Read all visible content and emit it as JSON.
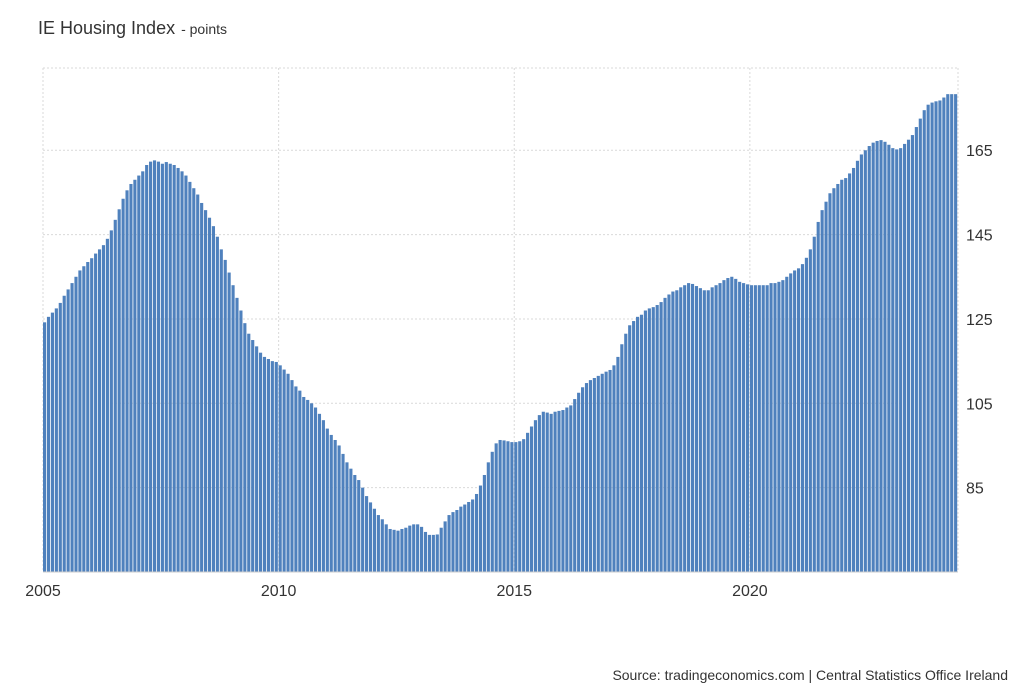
{
  "chart_data": {
    "type": "bar",
    "title": "IE Housing Index",
    "subtitle": "- points",
    "source": "Source: tradingeconomics.com | Central Statistics Office Ireland",
    "color": "#4f81bd",
    "ylim": [
      65,
      184.5
    ],
    "yticks": [
      85,
      105,
      125,
      145,
      165
    ],
    "grid": true,
    "categories": [
      "2005",
      null,
      null,
      null,
      null,
      null,
      null,
      null,
      null,
      null,
      null,
      null,
      null,
      null,
      null,
      null,
      null,
      null,
      null,
      null,
      null,
      null,
      null,
      null,
      null,
      null,
      null,
      null,
      null,
      null,
      null,
      null,
      null,
      null,
      null,
      null,
      null,
      null,
      null,
      null,
      null,
      null,
      null,
      null,
      null,
      null,
      null,
      null,
      null,
      null,
      null,
      null,
      null,
      null,
      null,
      null,
      null,
      null,
      null,
      null,
      "2010",
      null,
      null,
      null,
      null,
      null,
      null,
      null,
      null,
      null,
      null,
      null,
      null,
      null,
      null,
      null,
      null,
      null,
      null,
      null,
      null,
      null,
      null,
      null,
      null,
      null,
      null,
      null,
      null,
      null,
      null,
      null,
      null,
      null,
      null,
      null,
      null,
      null,
      null,
      null,
      null,
      null,
      null,
      null,
      null,
      null,
      null,
      null,
      null,
      null,
      null,
      null,
      null,
      null,
      null,
      null,
      null,
      null,
      null,
      null,
      "2015",
      null,
      null,
      null,
      null,
      null,
      null,
      null,
      null,
      null,
      null,
      null,
      null,
      null,
      null,
      null,
      null,
      null,
      null,
      null,
      null,
      null,
      null,
      null,
      null,
      null,
      null,
      null,
      null,
      null,
      null,
      null,
      null,
      null,
      null,
      null,
      null,
      null,
      null,
      null,
      null,
      null,
      null,
      null,
      null,
      null,
      null,
      null,
      null,
      null,
      null,
      null,
      null,
      null,
      null,
      null,
      null,
      null,
      null,
      null,
      "2020",
      null,
      null,
      null,
      null,
      null,
      null,
      null,
      null,
      null,
      null,
      null,
      null,
      null,
      null,
      null,
      null,
      null,
      null,
      null,
      null,
      null,
      null,
      null,
      null,
      null,
      null,
      null,
      null,
      null,
      null,
      null,
      null,
      null,
      null,
      null,
      null,
      null,
      null,
      null,
      null,
      null,
      null,
      null,
      null,
      null,
      null,
      null,
      null,
      null,
      null,
      null,
      null
    ],
    "values": [
      124.2,
      125.5,
      126.5,
      127.5,
      128.8,
      130.5,
      132,
      133.5,
      135,
      136.5,
      137.5,
      138.5,
      139.4,
      140.5,
      141.5,
      142.5,
      144,
      146,
      148.5,
      151,
      153.5,
      155.5,
      157,
      158,
      159,
      160,
      161.5,
      162.3,
      162.6,
      162.3,
      161.8,
      162.2,
      161.8,
      161.5,
      160.8,
      160,
      159,
      157.5,
      156,
      154.5,
      152.5,
      150.8,
      149,
      147,
      144.5,
      141.5,
      139,
      136,
      133,
      130,
      127,
      124,
      121.5,
      120,
      118.5,
      117,
      116,
      115.5,
      115,
      114.8,
      114,
      113,
      112,
      110.5,
      109,
      108,
      106.5,
      105.8,
      105,
      104,
      102.5,
      101,
      99,
      97.5,
      96.3,
      95,
      93,
      91,
      89.5,
      88,
      86.8,
      85,
      83,
      81.5,
      80,
      78.5,
      77.5,
      76.3,
      75.2,
      75,
      74.8,
      75.2,
      75.5,
      76,
      76.3,
      76.3,
      75.7,
      74.5,
      73.8,
      73.8,
      73.9,
      75.5,
      77,
      78.5,
      79.2,
      79.7,
      80.5,
      81,
      81.6,
      82.2,
      83.5,
      85.5,
      88,
      91,
      93.5,
      95.5,
      96.3,
      96.2,
      96,
      95.8,
      95.8,
      96,
      96.5,
      98,
      99.5,
      101,
      102.2,
      103,
      102.8,
      102.5,
      103,
      103.2,
      103.4,
      104,
      104.5,
      106,
      107.5,
      108.8,
      109.8,
      110.5,
      111,
      111.5,
      112,
      112.5,
      112.9,
      114,
      116,
      119,
      121.5,
      123.5,
      124.5,
      125.5,
      126,
      127,
      127.5,
      127.8,
      128.3,
      129,
      130,
      130.8,
      131.5,
      131.8,
      132.5,
      133,
      133.5,
      133.3,
      132.8,
      132.3,
      131.8,
      131.8,
      132.5,
      133,
      133.5,
      134.2,
      134.7,
      135,
      134.5,
      133.8,
      133.5,
      133.2,
      133,
      133,
      133,
      133,
      133,
      133.5,
      133.5,
      133.8,
      134.2,
      135,
      135.8,
      136.5,
      137,
      138,
      139.5,
      141.5,
      144.5,
      148,
      150.8,
      152.8,
      154.8,
      156,
      157,
      158,
      158.4,
      159.5,
      160.8,
      162.5,
      164,
      165,
      166,
      166.8,
      167.2,
      167.4,
      167,
      166.3,
      165.5,
      165.2,
      165.5,
      166.5,
      167.5,
      168.6,
      170.5,
      172.5,
      174.5,
      175.8,
      176.3,
      176.6,
      176.8,
      177.5,
      178.3,
      178.3,
      178.3
    ]
  }
}
